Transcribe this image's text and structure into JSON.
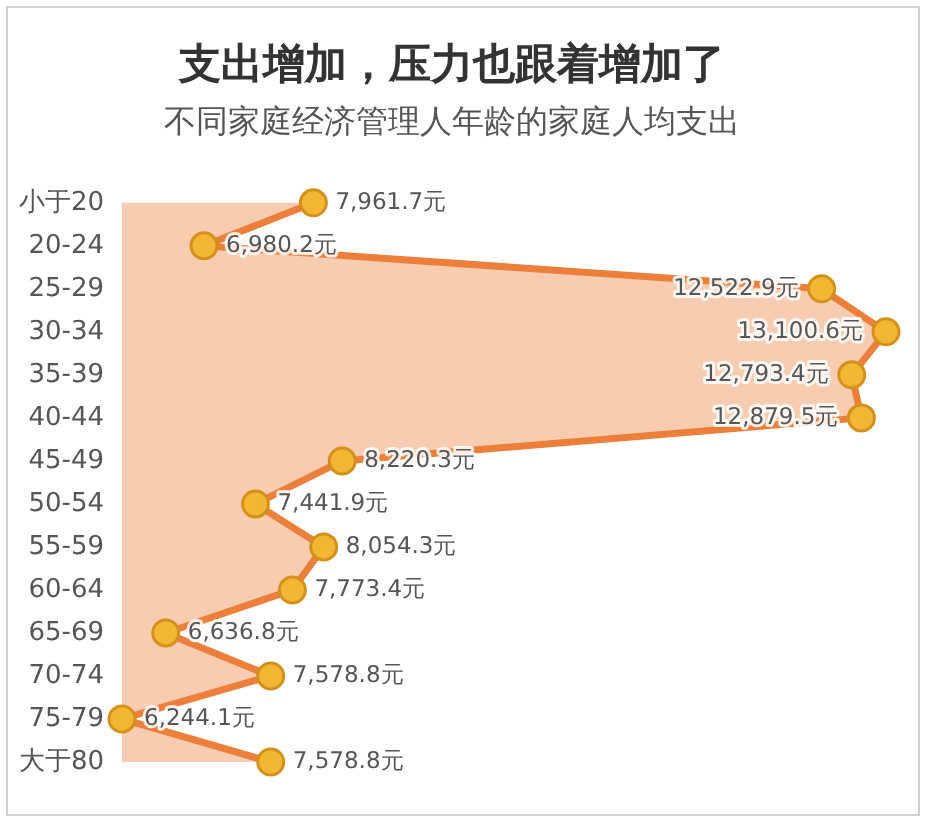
{
  "chart_data": {
    "type": "area",
    "orientation": "horizontal",
    "title": "支出增加，压力也跟着增加了",
    "subtitle": "不同家庭经济管理人年龄的家庭人均支出",
    "categories": [
      "小于20",
      "20-24",
      "25-29",
      "30-34",
      "35-39",
      "40-44",
      "45-49",
      "50-54",
      "55-59",
      "60-64",
      "65-69",
      "70-74",
      "75-79",
      "大于80"
    ],
    "values": [
      7961.7,
      6980.2,
      12522.9,
      13100.6,
      12793.4,
      12879.5,
      8220.3,
      7441.9,
      8054.3,
      7773.4,
      6636.8,
      7578.8,
      6244.1,
      7578.8
    ],
    "value_labels": [
      "7,961.7元",
      "6,980.2元",
      "12,522.9元",
      "13,100.6元",
      "12,793.4元",
      "12,879.5元",
      "8,220.3元",
      "7,441.9元",
      "8,054.3元",
      "7,773.4元",
      "6,636.8元",
      "7,578.8元",
      "6,244.1元",
      "7,578.8元"
    ],
    "color": "#ec7f3a",
    "colors": [
      "#f2b632",
      "#f2b632",
      "#f2b632",
      "#f2b632",
      "#f2b632",
      "#f2b632",
      "#f2b632",
      "#f2b632",
      "#f2b632",
      "#f2b632",
      "#f2b632",
      "#f2b632",
      "#f2b632",
      "#f2b632"
    ],
    "marker": "circle",
    "tick_labels": "y",
    "grid": false,
    "legend": false
  }
}
